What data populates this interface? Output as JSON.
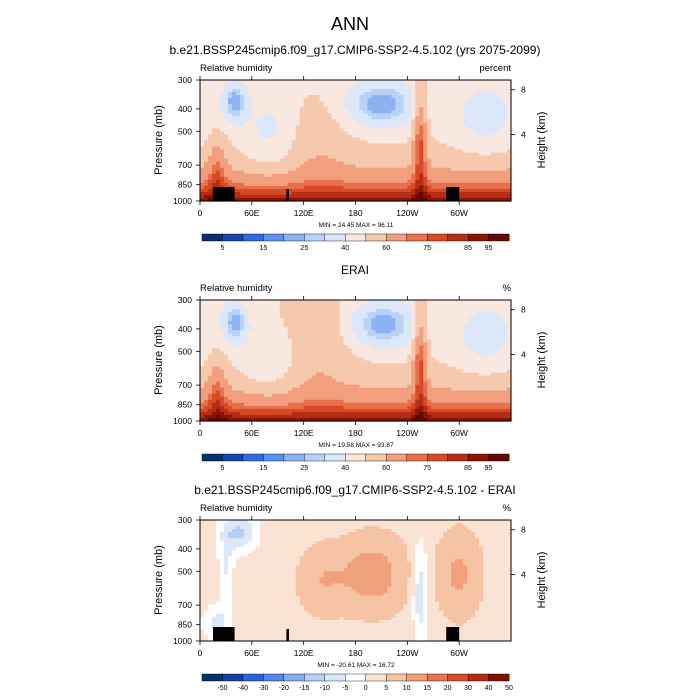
{
  "title": "ANN",
  "chart_data": [
    {
      "type": "heatmap",
      "title": "b.e21.BSSP245cmip6.f09_g17.CMIP6-SSP2-4.5.102 (yrs 2075-2099)",
      "left_label": "Relative humidity",
      "right_label": "percent",
      "ylabel": "Pressure (mb)",
      "ylabel_right": "Height (km)",
      "x_ticks": [
        "0",
        "60E",
        "120E",
        "180",
        "120W",
        "60W"
      ],
      "y_ticks": [
        "300",
        "400",
        "500",
        "700",
        "850",
        "1000"
      ],
      "right_ticks": [
        "8",
        "4"
      ],
      "stats": "MIN = 24.45  MAX = 96.11",
      "colorbar_labels": [
        "5",
        "15",
        "25",
        "40",
        "60",
        "75",
        "85",
        "95"
      ],
      "value_range": [
        24.45,
        96.11
      ],
      "terrain": [
        [
          15,
          40
        ],
        [
          100,
          103
        ],
        [
          285,
          300
        ]
      ]
    },
    {
      "type": "heatmap",
      "title": "ERAI",
      "left_label": "Relative humidity",
      "right_label": "%",
      "ylabel": "Pressure (mb)",
      "ylabel_right": "Height (km)",
      "x_ticks": [
        "0",
        "60E",
        "120E",
        "180",
        "120W",
        "60W"
      ],
      "y_ticks": [
        "300",
        "400",
        "500",
        "700",
        "850",
        "1000"
      ],
      "right_ticks": [
        "8",
        "4"
      ],
      "stats": "MIN = 19.58  MAX = 93.87",
      "colorbar_labels": [
        "5",
        "15",
        "25",
        "40",
        "60",
        "75",
        "85",
        "95"
      ],
      "value_range": [
        19.58,
        93.87
      ],
      "terrain": []
    },
    {
      "type": "heatmap",
      "title": "b.e21.BSSP245cmip6.f09_g17.CMIP6-SSP2-4.5.102 - ERAI",
      "left_label": "Relative humidity",
      "right_label": "%",
      "ylabel": "Pressure (mb)",
      "ylabel_right": "Height (km)",
      "x_ticks": [
        "0",
        "60E",
        "120E",
        "180",
        "120W",
        "60W"
      ],
      "y_ticks": [
        "300",
        "400",
        "500",
        "700",
        "850",
        "1000"
      ],
      "right_ticks": [
        "8",
        "4"
      ],
      "stats": "MIN = -20.61  MAX = 16.72",
      "colorbar_labels": [
        "-50",
        "-40",
        "-30",
        "-20",
        "-15",
        "-10",
        "-5",
        "0",
        "5",
        "10",
        "15",
        "20",
        "30",
        "40",
        "50"
      ],
      "value_range": [
        -20.61,
        16.72
      ],
      "terrain": [
        [
          15,
          40
        ],
        [
          100,
          103
        ],
        [
          285,
          300
        ]
      ]
    }
  ],
  "colors": {
    "abs_palette": [
      "#08306b",
      "#1746b0",
      "#2c6be0",
      "#5b92ee",
      "#8bb3f2",
      "#b9d2f7",
      "#dce8f9",
      "#f8e8df",
      "#f6c8ae",
      "#f19f7d",
      "#e8714c",
      "#d84a26",
      "#b52d12",
      "#8a1506",
      "#620702"
    ],
    "diff_palette": [
      "#08306b",
      "#173f9f",
      "#2c62d6",
      "#5388e8",
      "#86adf0",
      "#b6cff5",
      "#dce7f9",
      "#ffffff",
      "#fbe3d4",
      "#f6c3a5",
      "#f0a07b",
      "#e57650",
      "#d44e2a",
      "#b42c13",
      "#7e1004"
    ],
    "terrain": "#000000"
  }
}
